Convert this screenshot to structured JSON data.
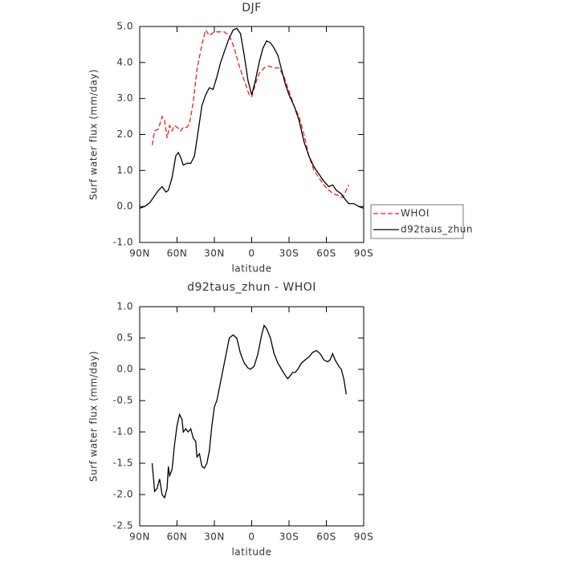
{
  "chart_data": [
    {
      "type": "line",
      "title": "DJF",
      "xlabel": "latitude",
      "ylabel": "Surf water flux (mm/day)",
      "xlim": [
        90,
        -90
      ],
      "xticks": [
        {
          "value": 90,
          "label": "90N"
        },
        {
          "value": 60,
          "label": "60N"
        },
        {
          "value": 30,
          "label": "30N"
        },
        0,
        {
          "value": -30,
          "label": "30S"
        },
        {
          "value": -60,
          "label": "60S"
        },
        {
          "value": -90,
          "label": "90S"
        }
      ],
      "ylim": [
        -1,
        5
      ],
      "yticks": [
        {
          "value": -1,
          "label": "-1.0"
        },
        {
          "value": 0,
          "label": "0.0"
        },
        {
          "value": 1,
          "label": "1.0"
        },
        {
          "value": 2,
          "label": "2.0"
        },
        {
          "value": 3,
          "label": "3.0"
        },
        {
          "value": 4,
          "label": "4.0"
        },
        {
          "value": 5,
          "label": "5.0"
        }
      ],
      "legend": "right",
      "series": [
        {
          "name": "WHOI",
          "color": "#e8201e",
          "linestyle": "dashed",
          "x": [
            80,
            78,
            75,
            72,
            70,
            68,
            66,
            64,
            62,
            60,
            57,
            55,
            52,
            50,
            47,
            44,
            40,
            37,
            34,
            30,
            26,
            22,
            18,
            14,
            10,
            6,
            2,
            0,
            -3,
            -6,
            -10,
            -14,
            -18,
            -22,
            -26,
            -30,
            -34,
            -38,
            -42,
            -46,
            -50,
            -54,
            -58,
            -62,
            -66,
            -70,
            -73,
            -76,
            -78
          ],
          "values": [
            1.7,
            2.1,
            2.15,
            2.5,
            2.4,
            1.9,
            2.25,
            2.1,
            2.25,
            2.2,
            2.1,
            2.2,
            2.2,
            2.3,
            2.9,
            3.8,
            4.5,
            4.9,
            4.75,
            4.85,
            4.85,
            4.85,
            4.75,
            4.4,
            3.9,
            3.5,
            3.1,
            3.05,
            3.4,
            3.7,
            3.85,
            3.9,
            3.85,
            3.85,
            3.6,
            3.2,
            2.8,
            2.5,
            2.0,
            1.4,
            1.0,
            0.8,
            0.6,
            0.45,
            0.35,
            0.3,
            0.25,
            0.45,
            0.6
          ]
        },
        {
          "name": "d92taus_zhun",
          "color": "#000000",
          "linestyle": "solid",
          "x": [
            90,
            86,
            82,
            78,
            75,
            72,
            69,
            67,
            64,
            61,
            59,
            57,
            55,
            52,
            49,
            46,
            43,
            40,
            37,
            34,
            31,
            28,
            25,
            22,
            19,
            15,
            12,
            9,
            6,
            3,
            0,
            -3,
            -6,
            -9,
            -12,
            -15,
            -18,
            -21,
            -24,
            -27,
            -30,
            -34,
            -38,
            -42,
            -46,
            -50,
            -54,
            -58,
            -62,
            -65,
            -68,
            -72,
            -75,
            -78,
            -82,
            -86,
            -90
          ],
          "values": [
            -0.05,
            0.0,
            0.1,
            0.3,
            0.45,
            0.55,
            0.4,
            0.45,
            0.8,
            1.4,
            1.5,
            1.35,
            1.15,
            1.2,
            1.2,
            1.4,
            2.1,
            2.8,
            3.1,
            3.3,
            3.25,
            3.6,
            4.0,
            4.3,
            4.6,
            4.9,
            4.95,
            4.8,
            4.2,
            3.5,
            3.1,
            3.5,
            4.0,
            4.4,
            4.6,
            4.55,
            4.4,
            4.2,
            3.8,
            3.4,
            3.1,
            2.8,
            2.4,
            1.8,
            1.4,
            1.1,
            0.9,
            0.7,
            0.55,
            0.6,
            0.45,
            0.35,
            0.2,
            0.08,
            0.08,
            0.0,
            -0.05
          ]
        }
      ]
    },
    {
      "type": "line",
      "title": "d92taus_zhun - WHOI",
      "xlabel": "latitude",
      "ylabel": "Surf water flux (mm/day)",
      "xlim": [
        90,
        -90
      ],
      "xticks": [
        {
          "value": 90,
          "label": "90N"
        },
        {
          "value": 60,
          "label": "60N"
        },
        {
          "value": 30,
          "label": "30N"
        },
        0,
        {
          "value": -30,
          "label": "30S"
        },
        {
          "value": -60,
          "label": "60S"
        },
        {
          "value": -90,
          "label": "90S"
        }
      ],
      "ylim": [
        -2.5,
        1
      ],
      "yticks": [
        {
          "value": -2.5,
          "label": "-2.5"
        },
        {
          "value": -2,
          "label": "-2.0"
        },
        {
          "value": -1.5,
          "label": "-1.5"
        },
        {
          "value": -1,
          "label": "-1.0"
        },
        {
          "value": -0.5,
          "label": "-0.5"
        },
        {
          "value": 0,
          "label": "0.0"
        },
        {
          "value": 0.5,
          "label": "0.5"
        },
        {
          "value": 1,
          "label": "1.0"
        }
      ],
      "color": "#000000",
      "x": [
        80,
        78,
        76,
        74,
        72,
        70,
        68,
        67,
        66,
        64,
        62,
        60,
        58,
        56,
        55,
        53,
        51,
        49,
        47,
        45,
        44,
        42,
        40,
        38,
        36,
        34,
        32,
        30,
        28,
        26,
        24,
        22,
        20,
        18,
        15,
        12,
        9,
        6,
        3,
        1,
        -2,
        -5,
        -8,
        -10,
        -12,
        -15,
        -18,
        -21,
        -24,
        -27,
        -29,
        -31,
        -33,
        -35,
        -37,
        -40,
        -43,
        -46,
        -49,
        -52,
        -55,
        -58,
        -61,
        -63,
        -65,
        -67,
        -70,
        -72,
        -74,
        -76
      ],
      "values": [
        -1.5,
        -1.95,
        -1.9,
        -1.75,
        -2.0,
        -2.05,
        -1.9,
        -1.55,
        -1.7,
        -1.6,
        -1.2,
        -0.9,
        -0.72,
        -0.8,
        -1.0,
        -0.95,
        -1.0,
        -0.95,
        -1.1,
        -1.15,
        -1.4,
        -1.35,
        -1.55,
        -1.58,
        -1.5,
        -1.3,
        -0.9,
        -0.6,
        -0.5,
        -0.3,
        -0.1,
        0.1,
        0.3,
        0.5,
        0.55,
        0.5,
        0.25,
        0.1,
        0.02,
        0.0,
        0.05,
        0.25,
        0.55,
        0.7,
        0.65,
        0.5,
        0.25,
        0.1,
        0.0,
        -0.1,
        -0.15,
        -0.1,
        -0.05,
        -0.05,
        0.0,
        0.1,
        0.15,
        0.2,
        0.27,
        0.3,
        0.25,
        0.15,
        0.12,
        0.15,
        0.25,
        0.15,
        0.05,
        0.0,
        -0.15,
        -0.4
      ]
    }
  ]
}
